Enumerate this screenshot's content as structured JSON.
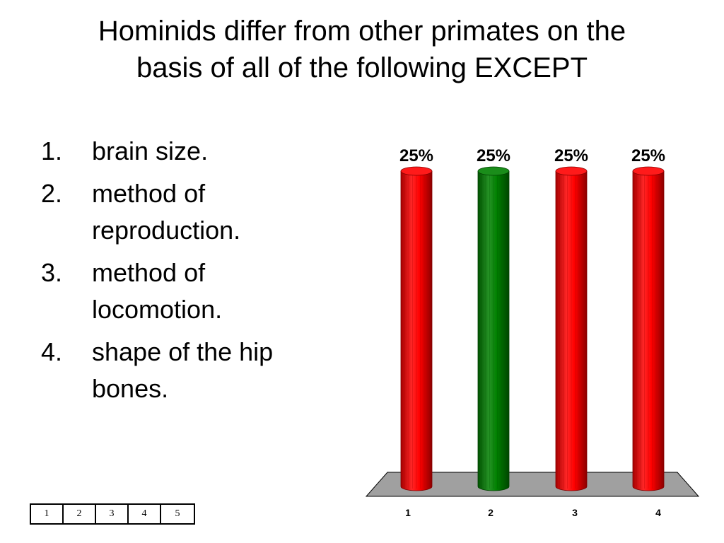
{
  "slide": {
    "title_lines": [
      "Hominids differ from other primates on the",
      "basis of all of the following EXCEPT"
    ],
    "answers": [
      {
        "number": "1.",
        "lines": [
          "brain size."
        ]
      },
      {
        "number": "2.",
        "lines": [
          "method of",
          "reproduction."
        ]
      },
      {
        "number": "3.",
        "lines": [
          "method of",
          "locomotion."
        ]
      },
      {
        "number": "4.",
        "lines": [
          "shape of the hip",
          "bones."
        ]
      }
    ]
  },
  "chart_data": {
    "type": "bar",
    "categories": [
      "1",
      "2",
      "3",
      "4"
    ],
    "values": [
      25,
      25,
      25,
      25
    ],
    "data_labels": [
      "25%",
      "25%",
      "25%",
      "25%"
    ],
    "ylim": [
      0,
      25
    ],
    "bar_colors": [
      "#ff0000",
      "#008000",
      "#ff0000",
      "#ff0000"
    ],
    "floor_color": "#a0a0a0",
    "grid": false,
    "legend": "none",
    "title": "",
    "xlabel": "",
    "ylabel": ""
  },
  "counter": {
    "cells": [
      "1",
      "2",
      "3",
      "4",
      "5"
    ]
  }
}
